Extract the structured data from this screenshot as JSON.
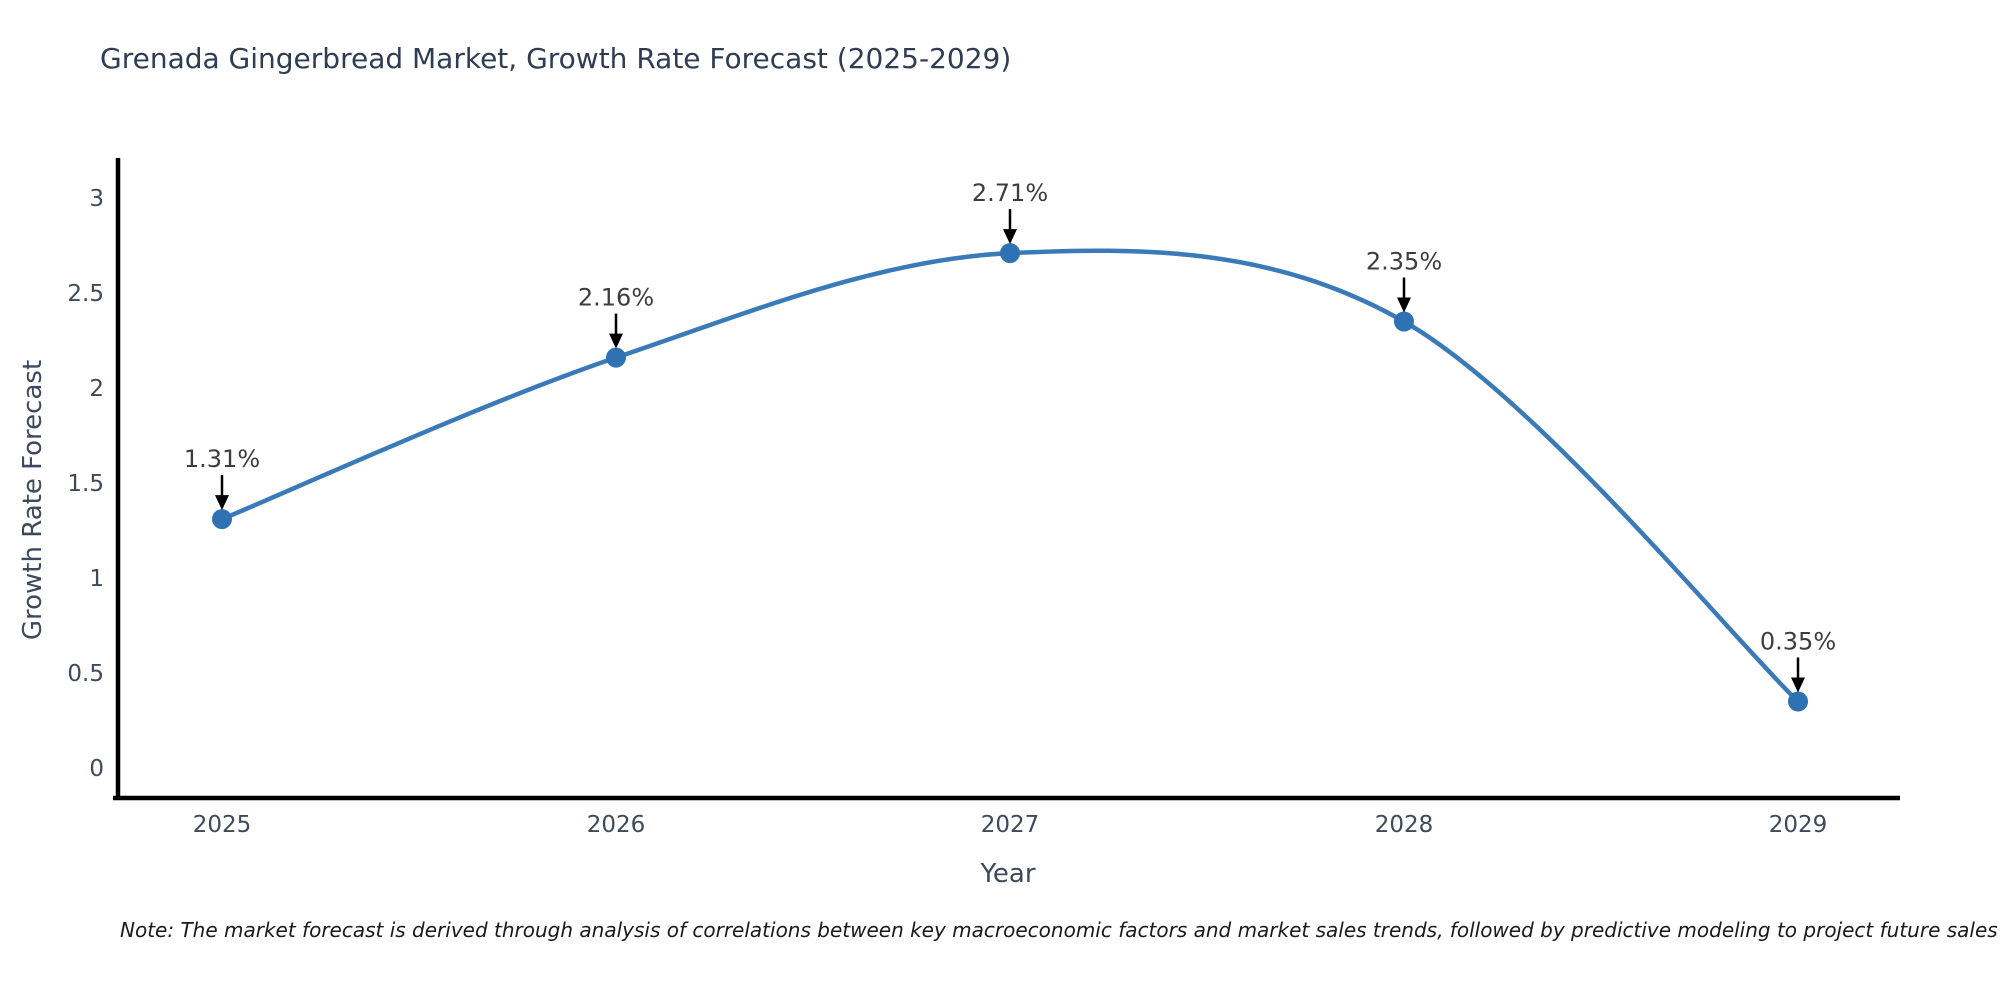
{
  "title": "Grenada Gingerbread Market, Growth Rate Forecast (2025-2029)",
  "note": "Note: The market forecast is derived through analysis of correlations between key macroeconomic factors and market sales trends, followed by predictive modeling to project future sales",
  "chart_data": {
    "type": "line",
    "title": "Grenada Gingerbread Market, Growth Rate Forecast (2025-2029)",
    "x": [
      2025,
      2026,
      2027,
      2028,
      2029
    ],
    "values": [
      1.31,
      2.16,
      2.71,
      2.35,
      0.35
    ],
    "point_labels": [
      "1.31%",
      "2.16%",
      "2.71%",
      "2.35%",
      "0.35%"
    ],
    "xlabel": "Year",
    "ylabel": "Growth Rate Forecast",
    "ylim": [
      0,
      3
    ],
    "yticks": [
      0,
      0.5,
      1,
      1.5,
      2,
      2.5,
      3
    ],
    "grid": false,
    "legend": false,
    "smooth_line": true,
    "annotation_arrows": true,
    "colors": {
      "line": "#3a7ab8",
      "marker": "#2f72b3",
      "axis": "#000000",
      "tick_text": "#3d4a5c",
      "annotation_text": "#3d3d3d",
      "title_text": "#2e3d54"
    }
  }
}
